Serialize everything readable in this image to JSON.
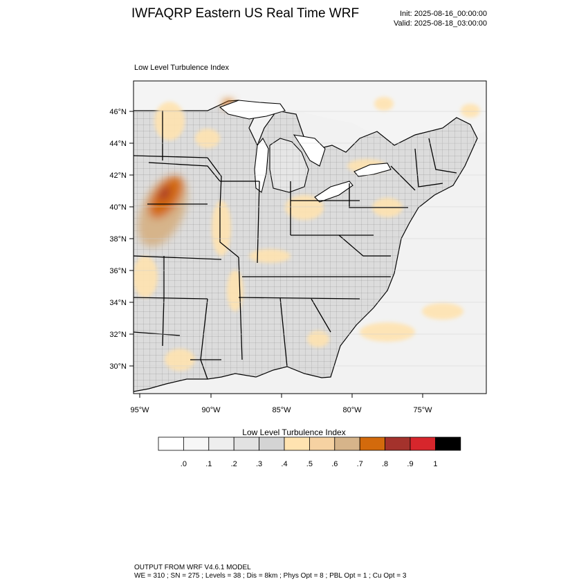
{
  "header": {
    "title": "IWFAQRP Eastern US Real Time WRF",
    "init": "Init: 2025-08-16_00:00:00",
    "valid": "Valid: 2025-08-18_03:00:00"
  },
  "panel": {
    "title": "Low Level Turbulence Index"
  },
  "map": {
    "lat_labels": [
      "46°N",
      "44°N",
      "42°N",
      "40°N",
      "38°N",
      "36°N",
      "34°N",
      "32°N",
      "30°N"
    ],
    "lon_labels": [
      "95°W",
      "90°W",
      "85°W",
      "80°W",
      "75°W"
    ],
    "colors": {
      "ocean": "#f0f0f0",
      "land": "#e2e2e2",
      "lake": "#ffffff",
      "border": "#000000"
    }
  },
  "colorbar": {
    "title": "Low Level Turbulence Index",
    "colors": [
      "#ffffff",
      "#f7f7f7",
      "#eeeeee",
      "#e2e2e2",
      "#d4d4d4",
      "#ffe3b0",
      "#f6d2a2",
      "#d6b48a",
      "#d36a0c",
      "#a4322c",
      "#d7262c",
      "#000000"
    ],
    "labels": [
      ".0",
      ".1",
      ".2",
      ".3",
      ".4",
      ".5",
      ".6",
      ".7",
      ".8",
      ".9",
      "1"
    ]
  },
  "footer": {
    "line1": "OUTPUT FROM WRF V4.6.1 MODEL",
    "line2": "WE = 310 ; SN = 275 ; Levels = 38 ; Dis = 8km ; Phys Opt = 8 ; PBL Opt = 1 ; Cu Opt = 3"
  }
}
